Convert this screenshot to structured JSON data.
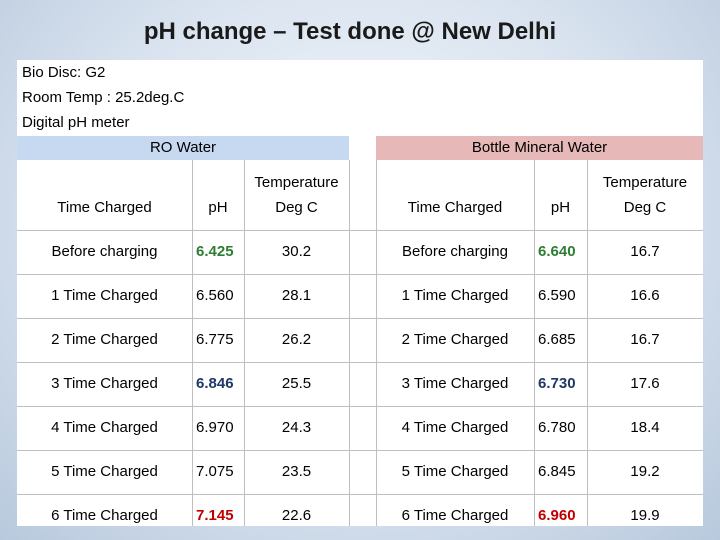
{
  "title": "pH change – Test done @ New Delhi",
  "meta": {
    "line1": "Bio Disc: G2",
    "line2": "Room Temp : 25.2deg.C",
    "line3": "Digital pH meter"
  },
  "ro": {
    "band": "RO Water",
    "headers": {
      "time": "Time Charged",
      "ph": "pH",
      "temp1": "Temperature",
      "temp2": "Deg C"
    },
    "rows": [
      {
        "time": "Before charging",
        "ph": "6.425",
        "temp": "30.2",
        "style": "green"
      },
      {
        "time": "1 Time Charged",
        "ph": "6.560",
        "temp": "28.1",
        "style": ""
      },
      {
        "time": "2 Time Charged",
        "ph": "6.775",
        "temp": "26.2",
        "style": ""
      },
      {
        "time": "3 Time Charged",
        "ph": "6.846",
        "temp": "25.5",
        "style": "blue"
      },
      {
        "time": "4 Time Charged",
        "ph": "6.970",
        "temp": "24.3",
        "style": ""
      },
      {
        "time": "5 Time Charged",
        "ph": "7.075",
        "temp": "23.5",
        "style": ""
      },
      {
        "time": "6 Time Charged",
        "ph": "7.145",
        "temp": "22.6",
        "style": "red"
      }
    ]
  },
  "bm": {
    "band": "Bottle Mineral Water",
    "headers": {
      "time": "Time Charged",
      "ph": "pH",
      "temp1": "Temperature",
      "temp2": "Deg C"
    },
    "rows": [
      {
        "time": "Before charging",
        "ph": "6.640",
        "temp": "16.7",
        "style": "green"
      },
      {
        "time": "1 Time Charged",
        "ph": "6.590",
        "temp": "16.6",
        "style": ""
      },
      {
        "time": "2 Time Charged",
        "ph": "6.685",
        "temp": "16.7",
        "style": ""
      },
      {
        "time": "3 Time Charged",
        "ph": "6.730",
        "temp": "17.6",
        "style": "blue"
      },
      {
        "time": "4 Time Charged",
        "ph": "6.780",
        "temp": "18.4",
        "style": ""
      },
      {
        "time": "5 Time Charged",
        "ph": "6.845",
        "temp": "19.2",
        "style": ""
      },
      {
        "time": "6 Time Charged",
        "ph": "6.960",
        "temp": "19.9",
        "style": "red"
      }
    ]
  }
}
